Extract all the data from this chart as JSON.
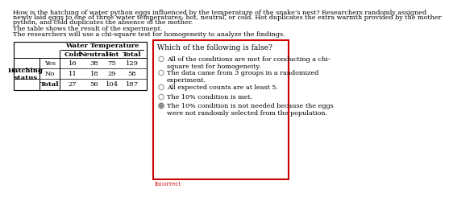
{
  "title_line1": "How is the hatching of water python eggs influenced by the temperature of the snake’s nest? Researchers randomly assigned",
  "title_line2": "newly laid eggs to one of three water temperatures: hot, neutral, or cold. Hot duplicates the extra warmth provided by the mother",
  "title_line3": "python, and cold duplicates the absence of the mother.",
  "subtitle1": "The table shows the result of the experiment.",
  "subtitle2": "The researchers will use a chi-square test for homogeneity to analyze the findings.",
  "table_title": "Water Temperature",
  "sub_headers": [
    "Cold",
    "Neutral",
    "Hot",
    "Total"
  ],
  "table_data": [
    [
      "Yes",
      "16",
      "38",
      "75",
      "129"
    ],
    [
      "No",
      "11",
      "18",
      "29",
      "58"
    ],
    [
      "Total",
      "27",
      "56",
      "104",
      "187"
    ]
  ],
  "hatching_label": "Hatching\nstatus",
  "question": "Which of the following is false?",
  "options": [
    "All of the conditions are met for conducting a chi-\nsquare test for homogeneity.",
    "The data came from 3 groups in a randomized\nexperiment.",
    "All expected counts are at least 5.",
    "The 10% condition is met.",
    "The 10% condition is not needed because the eggs\nwere not randomly selected from the population."
  ],
  "selected_option": 4,
  "incorrect_label": "Incorrect",
  "bg_color": "#ffffff",
  "text_color": "#000000",
  "border_color": "#000000",
  "answer_box_color": "#cc0000",
  "incorrect_color": "#cc0000",
  "fs_body": 5.8,
  "fs_table": 6.0,
  "fs_question": 6.5
}
